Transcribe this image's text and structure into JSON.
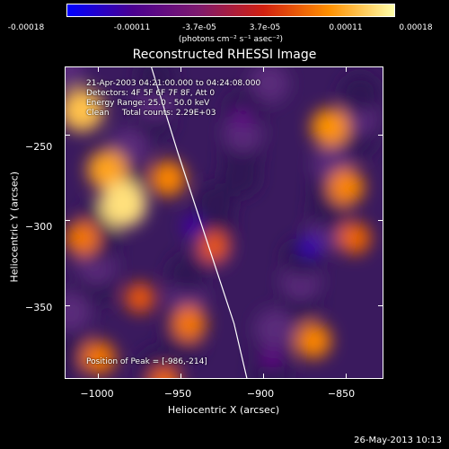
{
  "colorbar": {
    "tick_labels": [
      "-0.00018",
      "-0.00011",
      "-3.7e-05",
      "3.7e-05",
      "0.00011",
      "0.00018"
    ],
    "units": "(photons cm⁻² s⁻¹ asec⁻²)"
  },
  "title": "Reconstructed RHESSI Image",
  "annotations": {
    "time": "21-Apr-2003 04:21:00.000 to 04:24:08.000",
    "detectors": "Detectors: 4F 5F 6F 7F 8F, Att 0",
    "energy": "Energy Range: 25.0 - 50.0 keV",
    "clean": "Clean     Total counts: 2.29E+03",
    "peak": "Position of Peak = [-986,-214]"
  },
  "datestamp": "26-May-2013 10:13",
  "chart_data": {
    "type": "heatmap",
    "title": "Reconstructed RHESSI Image",
    "xlabel": "Heliocentric X (arcsec)",
    "ylabel": "Heliocentric Y (arcsec)",
    "xlim": [
      -1020,
      -827
    ],
    "ylim": [
      -393,
      -210
    ],
    "x_ticks": [
      -1000,
      -950,
      -900,
      -850
    ],
    "x_tick_labels": [
      "−1000",
      "−950",
      "−900",
      "−850"
    ],
    "y_ticks": [
      -250,
      -300,
      -350
    ],
    "y_tick_labels": [
      "−250",
      "−300",
      "−350"
    ],
    "colorbar_range": [
      -0.00018,
      0.00018
    ],
    "peak_position": [
      -986,
      -214
    ],
    "colormap": [
      "#0000ff",
      "#4b0090",
      "#7d1a6e",
      "#d22010",
      "#ff9000",
      "#ffffaa"
    ],
    "hot_spots": [
      {
        "x": -1010,
        "y": -235,
        "value": 0.00014
      },
      {
        "x": -995,
        "y": -270,
        "value": 0.00012
      },
      {
        "x": -985,
        "y": -290,
        "value": 0.00016
      },
      {
        "x": -1010,
        "y": -310,
        "value": 9e-05
      },
      {
        "x": -958,
        "y": -275,
        "value": 0.0001
      },
      {
        "x": -930,
        "y": -315,
        "value": 7e-05
      },
      {
        "x": -860,
        "y": -245,
        "value": 0.00011
      },
      {
        "x": -850,
        "y": -280,
        "value": 0.0001
      },
      {
        "x": -845,
        "y": -310,
        "value": 8e-05
      },
      {
        "x": -1000,
        "y": -380,
        "value": 9e-05
      },
      {
        "x": -960,
        "y": -395,
        "value": 8e-05
      },
      {
        "x": -870,
        "y": -370,
        "value": 0.0001
      },
      {
        "x": -945,
        "y": -360,
        "value": 9e-05
      },
      {
        "x": -975,
        "y": -345,
        "value": 7e-05
      }
    ],
    "cold_spots": [
      {
        "x": -943,
        "y": -303,
        "value": -0.00012
      },
      {
        "x": -872,
        "y": -315,
        "value": -0.00013
      },
      {
        "x": -913,
        "y": -240,
        "value": -8e-05
      },
      {
        "x": -895,
        "y": -380,
        "value": -8e-05
      }
    ],
    "limb_curve": [
      [
        -968,
        -210
      ],
      [
        -952,
        -260
      ],
      [
        -935,
        -310
      ],
      [
        -918,
        -360
      ],
      [
        -910,
        -393
      ]
    ]
  }
}
